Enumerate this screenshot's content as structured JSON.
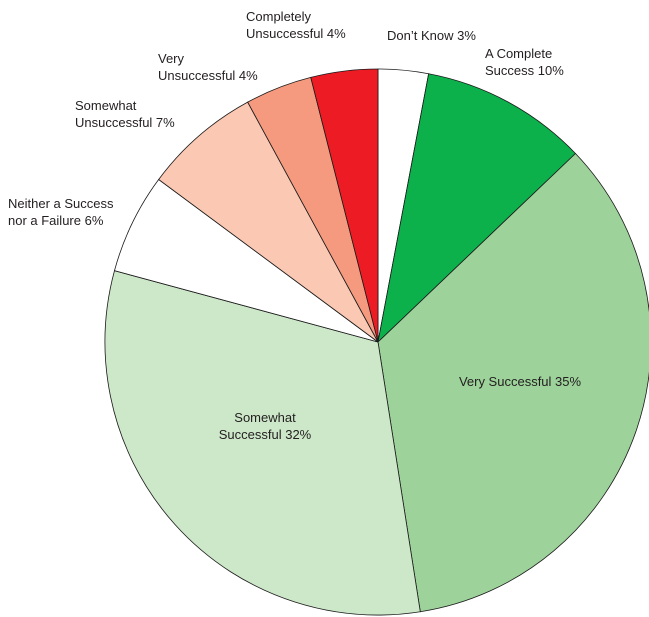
{
  "chart_data": {
    "type": "pie",
    "start": "top",
    "direction": "clockwise",
    "slices": [
      {
        "label": "Don’t Know 3%",
        "lines": [
          "Don’t Know 3%"
        ],
        "value": 3,
        "color": "#ffffff"
      },
      {
        "label": "A Complete Success 10%",
        "lines": [
          "A Complete",
          "Success 10%"
        ],
        "value": 10,
        "color": "#0db14b"
      },
      {
        "label": "Very Successful 35%",
        "lines": [
          "Very Successful 35%"
        ],
        "value": 35,
        "color": "#9dd39a"
      },
      {
        "label": "Somewhat Successful 32%",
        "lines": [
          "Somewhat",
          "Successful 32%"
        ],
        "value": 32,
        "color": "#cde7c9"
      },
      {
        "label": "Neither a Success nor a Failure 6%",
        "lines": [
          "Neither a Success",
          "nor a Failure 6%"
        ],
        "value": 6,
        "color": "#ffffff"
      },
      {
        "label": "Somewhat Unsuccessful 7%",
        "lines": [
          "Somewhat",
          "Unsuccessful 7%"
        ],
        "value": 7,
        "color": "#fbc8b3"
      },
      {
        "label": "Very Unsuccessful 4%",
        "lines": [
          "Very",
          "Unsuccessful 4%"
        ],
        "value": 4,
        "color": "#f59a7e"
      },
      {
        "label": "Completely Unsuccessful 4%",
        "lines": [
          "Completely",
          "Unsuccessful 4%"
        ],
        "value": 4,
        "color": "#ed1c24"
      }
    ]
  }
}
